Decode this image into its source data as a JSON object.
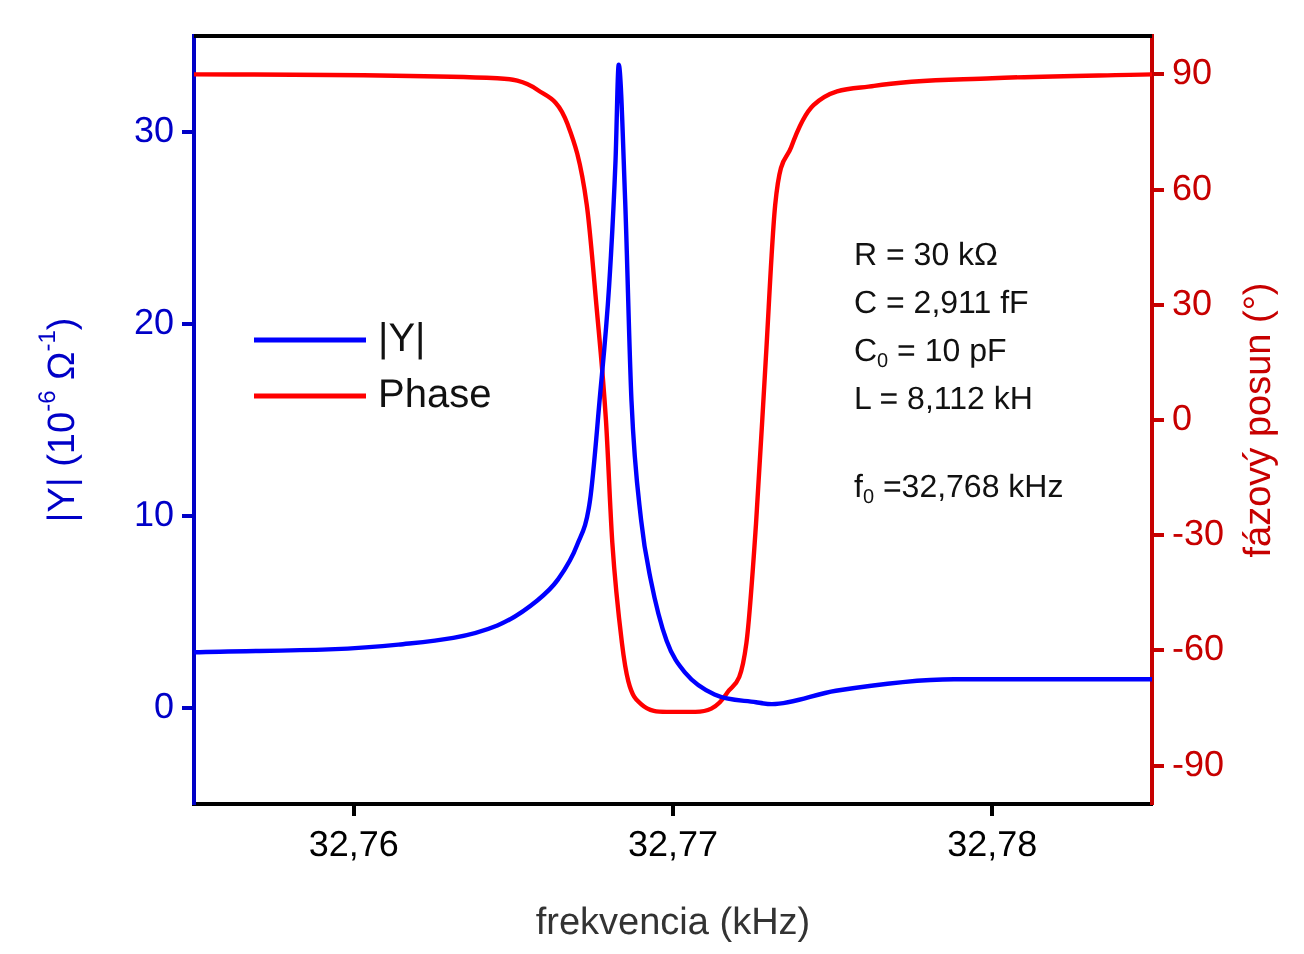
{
  "chart_data": {
    "type": "line",
    "xlabel": "frekvencia (kHz)",
    "ylabel": "|Y| (10$^{-6}$ Ω$^{-1}$)",
    "y2label": "fázový posun (°)",
    "xlim": [
      32.755,
      32.785
    ],
    "xticks": [
      {
        "value": 32.76,
        "label": "32,76"
      },
      {
        "value": 32.77,
        "label": "32,77"
      },
      {
        "value": 32.78,
        "label": "32,78"
      }
    ],
    "ylim": [
      -5,
      35
    ],
    "yticks": [
      0,
      10,
      20,
      30
    ],
    "y2lim": [
      -100,
      100
    ],
    "y2ticks": [
      -90,
      -60,
      -30,
      0,
      30,
      60,
      90
    ],
    "legend": "left",
    "grid": false,
    "annotations": [
      "R = 30 kΩ",
      "C = 2,911 fF",
      "C$_{0}$ = 10 pF",
      "L = 8,112 kH",
      "f$_{0}$ =32,768 kHz"
    ],
    "series": [
      {
        "name": "|Y|",
        "color": "#0000ff",
        "x": [
          32.755,
          32.7614,
          32.7645,
          32.76575,
          32.7664,
          32.767,
          32.7674,
          32.7677,
          32.768,
          32.7682,
          32.7683,
          32.7685,
          32.7687,
          32.769,
          32.7693,
          32.7698,
          32.7704,
          32.7713,
          32.7726,
          32.7731,
          32.7751,
          32.7788,
          32.785
        ],
        "values": [
          2.9,
          3.3,
          4.3,
          5.6,
          6.7,
          8.5,
          10.8,
          16,
          22,
          28.5,
          33.5,
          26.5,
          16,
          9.8,
          6.7,
          3.5,
          1.8,
          0.7,
          0.3,
          0.2,
          0.9,
          1.5,
          1.5
        ]
      },
      {
        "name": "Phase",
        "color": "#ff0000",
        "axis": "y2",
        "x": [
          32.755,
          32.7645,
          32.76575,
          32.7667,
          32.7673,
          32.7676,
          32.7679,
          32.7681,
          32.7684,
          32.7686,
          32.769,
          32.7698,
          32.7707,
          32.7717,
          32.7723,
          32.7726,
          32.7729,
          32.7732,
          32.7737,
          32.7744,
          32.7763,
          32.78,
          32.785
        ],
        "values": [
          90,
          89,
          86,
          77,
          56,
          30,
          0,
          -32,
          -58,
          -68,
          -74,
          -76,
          -76,
          -71,
          -58,
          -27,
          15,
          56,
          71,
          82,
          87,
          89,
          90
        ]
      }
    ]
  }
}
